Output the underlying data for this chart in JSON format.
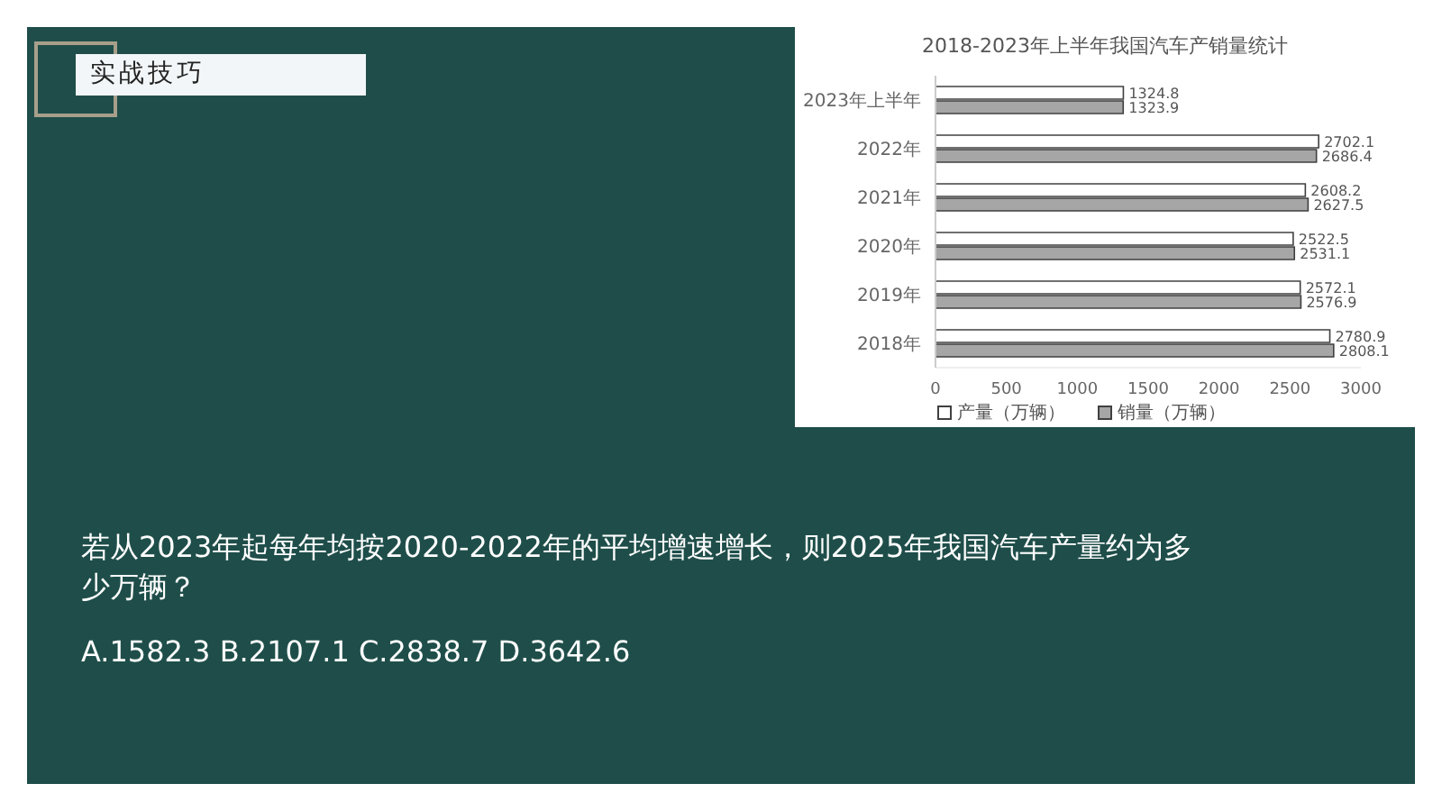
{
  "chart_data": {
    "type": "bar",
    "orientation": "horizontal",
    "title": "2018-2023年上半年我国汽车产销量统计",
    "categories": [
      "2023年上半年",
      "2022年",
      "2021年",
      "2020年",
      "2019年",
      "2018年"
    ],
    "series": [
      {
        "name": "产量（万辆）",
        "color": "#ffffff",
        "values": [
          1324.8,
          2702.1,
          2608.2,
          2522.5,
          2572.1,
          2780.9
        ]
      },
      {
        "name": "销量（万辆）",
        "color": "#a6a6a6",
        "values": [
          1323.9,
          2686.4,
          2627.5,
          2531.1,
          2576.9,
          2808.1
        ]
      }
    ],
    "xlim": [
      0,
      3000
    ],
    "xticks": [
      0,
      500,
      1000,
      1500,
      2000,
      2500,
      3000
    ],
    "data_labels": true,
    "grid": false,
    "legend": "bottom",
    "annotations": [
      "实战技巧",
      "若从2023年起每年均按2020-2022年的平均增速增长，则2025年我国汽车产量约为多少万辆？",
      "A.1582.3 B.2107.1 C.2838.7 D.3642.6"
    ]
  }
}
